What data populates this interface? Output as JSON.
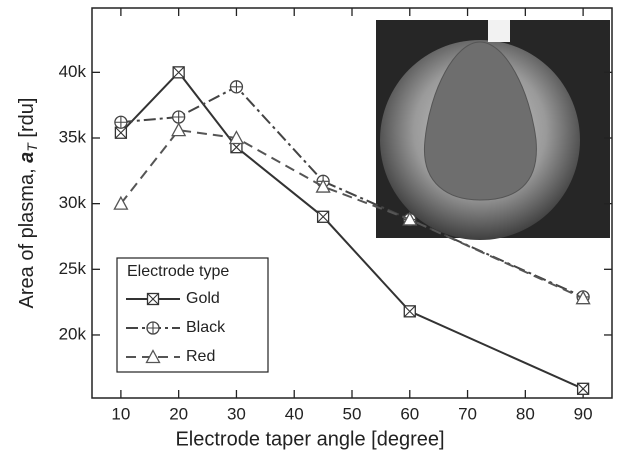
{
  "chart_data": {
    "type": "line",
    "xlabel": "Electrode taper angle [degree]",
    "ylabel": {
      "text": "Area of plasma, ",
      "symbol": "a",
      "subscript": "T",
      "unit": " [rdu]"
    },
    "x": [
      10,
      20,
      30,
      45,
      60,
      90
    ],
    "xlim": [
      5,
      95
    ],
    "xticks": [
      10,
      20,
      30,
      40,
      50,
      60,
      70,
      80,
      90
    ],
    "ylim": [
      15200,
      44900
    ],
    "yticks": [
      {
        "value": 20000,
        "label": "20k"
      },
      {
        "value": 25000,
        "label": "25k"
      },
      {
        "value": 30000,
        "label": "30k"
      },
      {
        "value": 35000,
        "label": "35k"
      },
      {
        "value": 40000,
        "label": "40k"
      }
    ],
    "legend_title": "Electrode type",
    "legend": "lower left",
    "series": [
      {
        "name": "Gold",
        "color": "#333333",
        "dash": "solid",
        "marker": "square-x",
        "values": [
          35400,
          40000,
          34300,
          29000,
          21800,
          15900
        ]
      },
      {
        "name": "Black",
        "color": "#444444",
        "dash": "dash-dot",
        "marker": "circle-plus",
        "values": [
          36200,
          36600,
          38900,
          31700,
          28800,
          22900
        ]
      },
      {
        "name": "Red",
        "color": "#555555",
        "dash": "dashed",
        "marker": "triangle",
        "values": [
          30000,
          35600,
          35000,
          31300,
          28800,
          22800
        ]
      }
    ]
  }
}
